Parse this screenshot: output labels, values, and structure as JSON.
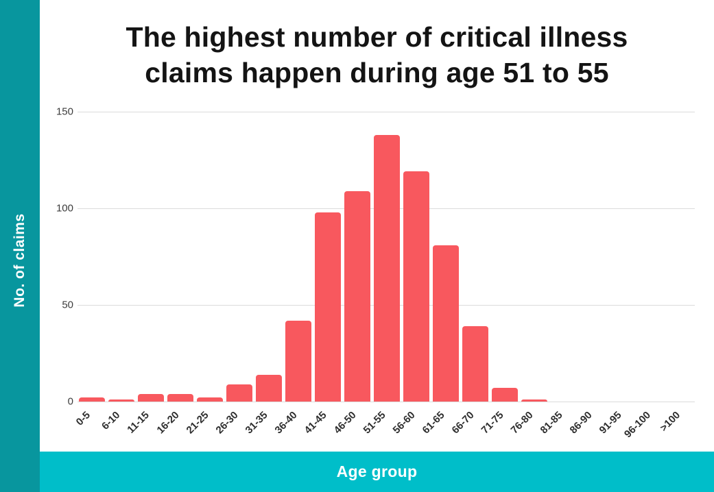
{
  "sidebar": {
    "label": "No. of claims",
    "color": "#08969E"
  },
  "footer": {
    "label": "Age group",
    "color": "#00BEC9"
  },
  "title_lines": [
    "The highest number of critical illness",
    "claims happen during age 51 to 55"
  ],
  "chart_data": {
    "type": "bar",
    "title": "The highest number of critical illness claims happen during age 51 to 55",
    "xlabel": "Age group",
    "ylabel": "No. of claims",
    "categories": [
      "0-5",
      "6-10",
      "11-15",
      "16-20",
      "21-25",
      "26-30",
      "31-35",
      "36-40",
      "41-45",
      "46-50",
      "51-55",
      "56-60",
      "61-65",
      "66-70",
      "71-75",
      "76-80",
      "81-85",
      "86-90",
      "91-95",
      "96-100",
      ">100"
    ],
    "values": [
      2,
      1,
      4,
      4,
      2,
      9,
      14,
      42,
      98,
      109,
      138,
      119,
      81,
      39,
      7,
      1,
      0,
      0,
      0,
      0,
      0
    ],
    "yticks": [
      0,
      50,
      100,
      150
    ],
    "ylim": [
      0,
      150
    ],
    "bar_color": "#F8585E",
    "grid": true,
    "gridline_color": "#dbdbdb",
    "legend_position": "none",
    "title_color": "#141414"
  }
}
